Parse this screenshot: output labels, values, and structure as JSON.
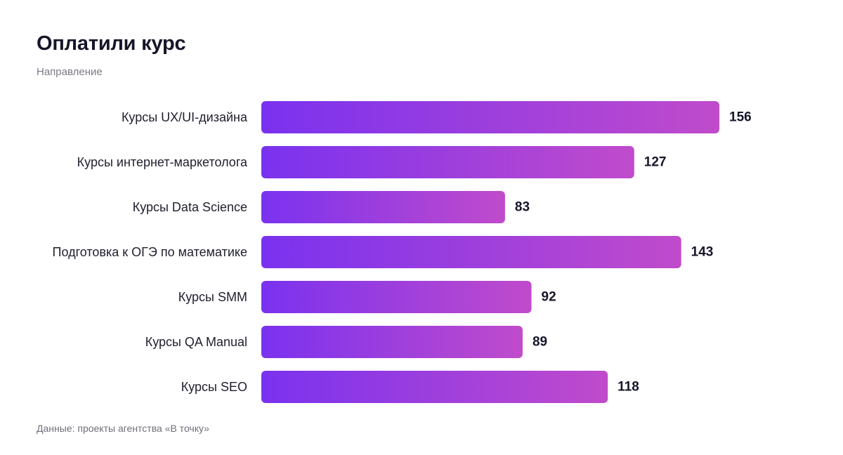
{
  "header": {
    "title": "Оплатили курс",
    "subtitle": "Направление"
  },
  "footer": {
    "source": "Данные: проекты агентства «В точку»"
  },
  "colors": {
    "bar_start": "#7a32ef",
    "bar_end": "#c04bcb",
    "text": "#1f1f2e"
  },
  "chart_data": {
    "type": "bar",
    "orientation": "horizontal",
    "categories": [
      "Курсы UX/UI-дизайна",
      "Курсы интернет-маркетолога",
      "Курсы Data Science",
      "Подготовка к ОГЭ по математике",
      "Курсы SMM",
      "Курсы QA Manual",
      "Курсы SEO"
    ],
    "values": [
      156,
      127,
      83,
      143,
      92,
      89,
      118
    ],
    "title": "Оплатили курс",
    "subtitle": "Направление",
    "xlabel": "",
    "ylabel": "",
    "xlim": [
      0,
      156
    ],
    "grid": false,
    "data_labels": true
  }
}
